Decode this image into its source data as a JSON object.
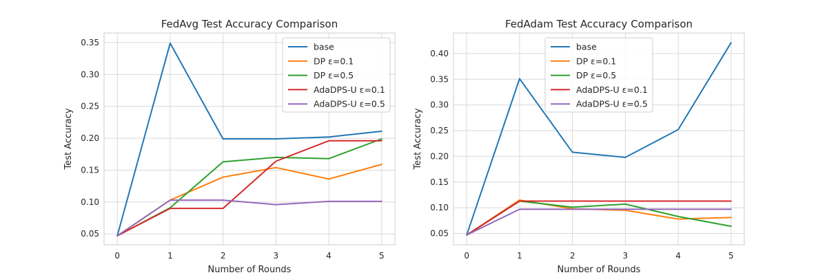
{
  "chart_data": [
    {
      "type": "line",
      "title": "FedAvg Test Accuracy Comparison",
      "xlabel": "Number of Rounds",
      "ylabel": "Test Accuracy",
      "x": [
        0,
        1,
        2,
        3,
        4,
        5
      ],
      "xlim": [
        -0.25,
        5.25
      ],
      "ylim": [
        0.033,
        0.365
      ],
      "xticks": [
        0,
        1,
        2,
        3,
        4,
        5
      ],
      "yticks": [
        0.05,
        0.1,
        0.15,
        0.2,
        0.25,
        0.3,
        0.35
      ],
      "grid": true,
      "legend_position": "upper right",
      "series": [
        {
          "name": "base",
          "color": "#1f77b4",
          "values": [
            0.047,
            0.349,
            0.199,
            0.199,
            0.202,
            0.211
          ]
        },
        {
          "name": "DP ε=0.1",
          "color": "#ff7f0e",
          "values": [
            0.047,
            0.103,
            0.139,
            0.154,
            0.136,
            0.159
          ]
        },
        {
          "name": "DP ε=0.5",
          "color": "#2ca02c",
          "values": [
            0.047,
            0.091,
            0.163,
            0.17,
            0.168,
            0.199
          ]
        },
        {
          "name": "AdaDPS-U ε=0.1",
          "color": "#d62728",
          "values": [
            0.047,
            0.09,
            0.09,
            0.164,
            0.196,
            0.196
          ]
        },
        {
          "name": "AdaDPS-U ε=0.5",
          "color": "#9467bd",
          "values": [
            0.047,
            0.103,
            0.103,
            0.096,
            0.101,
            0.101
          ]
        }
      ]
    },
    {
      "type": "line",
      "title": "FedAdam Test Accuracy Comparison",
      "xlabel": "Number of Rounds",
      "ylabel": "Test Accuracy",
      "x": [
        0,
        1,
        2,
        3,
        4,
        5
      ],
      "xlim": [
        -0.25,
        5.25
      ],
      "ylim": [
        0.028,
        0.44
      ],
      "xticks": [
        0,
        1,
        2,
        3,
        4,
        5
      ],
      "yticks": [
        0.05,
        0.1,
        0.15,
        0.2,
        0.25,
        0.3,
        0.35,
        0.4
      ],
      "grid": true,
      "legend_position": "upper center",
      "series": [
        {
          "name": "base",
          "color": "#1f77b4",
          "values": [
            0.047,
            0.351,
            0.208,
            0.198,
            0.252,
            0.421
          ]
        },
        {
          "name": "DP ε=0.1",
          "color": "#ff7f0e",
          "values": [
            0.047,
            0.115,
            0.098,
            0.095,
            0.078,
            0.081
          ]
        },
        {
          "name": "DP ε=0.5",
          "color": "#2ca02c",
          "values": [
            0.047,
            0.113,
            0.101,
            0.107,
            0.083,
            0.064
          ]
        },
        {
          "name": "AdaDPS-U ε=0.1",
          "color": "#d62728",
          "values": [
            0.047,
            0.113,
            0.113,
            0.113,
            0.113,
            0.113
          ]
        },
        {
          "name": "AdaDPS-U ε=0.5",
          "color": "#9467bd",
          "values": [
            0.047,
            0.097,
            0.097,
            0.097,
            0.097,
            0.097
          ]
        }
      ]
    }
  ]
}
